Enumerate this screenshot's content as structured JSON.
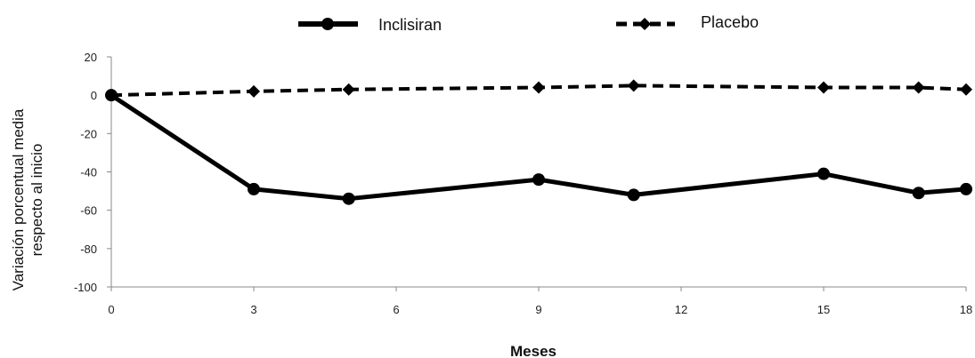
{
  "chart_data": {
    "type": "line",
    "xlabel": "Meses",
    "ylabel_lines": [
      "Variación porcentual media",
      "respecto al inicio"
    ],
    "xlim": [
      0,
      18
    ],
    "ylim": [
      -100,
      20
    ],
    "x_ticks": [
      0,
      3,
      6,
      9,
      12,
      15,
      18
    ],
    "y_ticks": [
      20,
      0,
      -20,
      -40,
      -60,
      -80,
      -100
    ],
    "legend_position": "top-center",
    "grid": false,
    "series": [
      {
        "name": "Inclisiran",
        "style": "solid",
        "marker": "circle",
        "color": "#000000",
        "points": [
          [
            0,
            0
          ],
          [
            3,
            -49
          ],
          [
            5,
            -54
          ],
          [
            9,
            -44
          ],
          [
            11,
            -52
          ],
          [
            15,
            -41
          ],
          [
            17,
            -51
          ],
          [
            18,
            -49
          ]
        ]
      },
      {
        "name": "Placebo",
        "style": "dashed",
        "marker": "diamond",
        "color": "#000000",
        "points": [
          [
            0,
            0
          ],
          [
            3,
            2
          ],
          [
            5,
            3
          ],
          [
            9,
            4
          ],
          [
            11,
            5
          ],
          [
            15,
            4
          ],
          [
            17,
            4
          ],
          [
            18,
            3
          ]
        ]
      }
    ]
  }
}
